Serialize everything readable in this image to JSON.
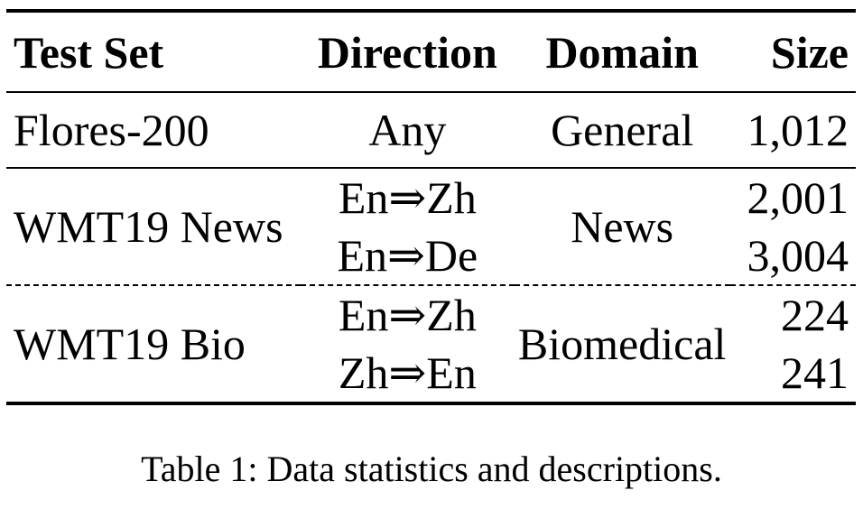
{
  "table": {
    "headers": {
      "test_set": "Test Set",
      "direction": "Direction",
      "domain": "Domain",
      "size": "Size"
    },
    "rows": [
      {
        "test_set": "Flores-200",
        "direction": "Any",
        "domain": "General",
        "size": "1,012"
      },
      {
        "test_set": "WMT19 News",
        "domain": "News",
        "subrows": [
          {
            "direction": "En⇒Zh",
            "size": "2,001"
          },
          {
            "direction": "En⇒De",
            "size": "3,004"
          }
        ]
      },
      {
        "test_set": "WMT19 Bio",
        "domain": "Biomedical",
        "subrows": [
          {
            "direction": "En⇒Zh",
            "size": "224"
          },
          {
            "direction": "Zh⇒En",
            "size": "241"
          }
        ]
      }
    ]
  },
  "caption": "Table 1: Data statistics and descriptions."
}
